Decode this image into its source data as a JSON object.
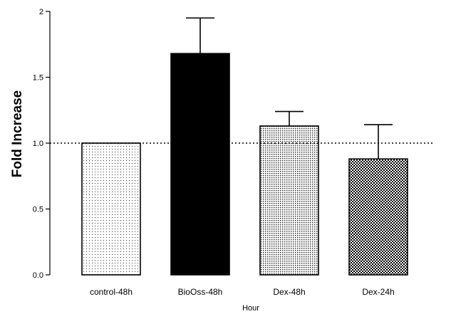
{
  "chart_data": {
    "type": "bar",
    "title": "",
    "xlabel": "Hour",
    "ylabel": "Fold Increase",
    "ylim": [
      0,
      2
    ],
    "y_ticks": [
      0,
      0.5,
      1.0,
      1.5,
      2
    ],
    "y_tick_labels": [
      "0.0",
      "0.5",
      "1.0",
      "1.5",
      "2"
    ],
    "categories": [
      "control-48h",
      "BioOss-48h",
      "Dex-48h",
      "Dex-24h"
    ],
    "values": [
      1.0,
      1.68,
      1.13,
      0.88
    ],
    "errors_upper": [
      0.0,
      0.27,
      0.11,
      0.26
    ],
    "fills": [
      "sparse-dots",
      "solid-black",
      "dense-dots",
      "checkerboard"
    ],
    "reference_line": 1.0,
    "grid": false
  }
}
